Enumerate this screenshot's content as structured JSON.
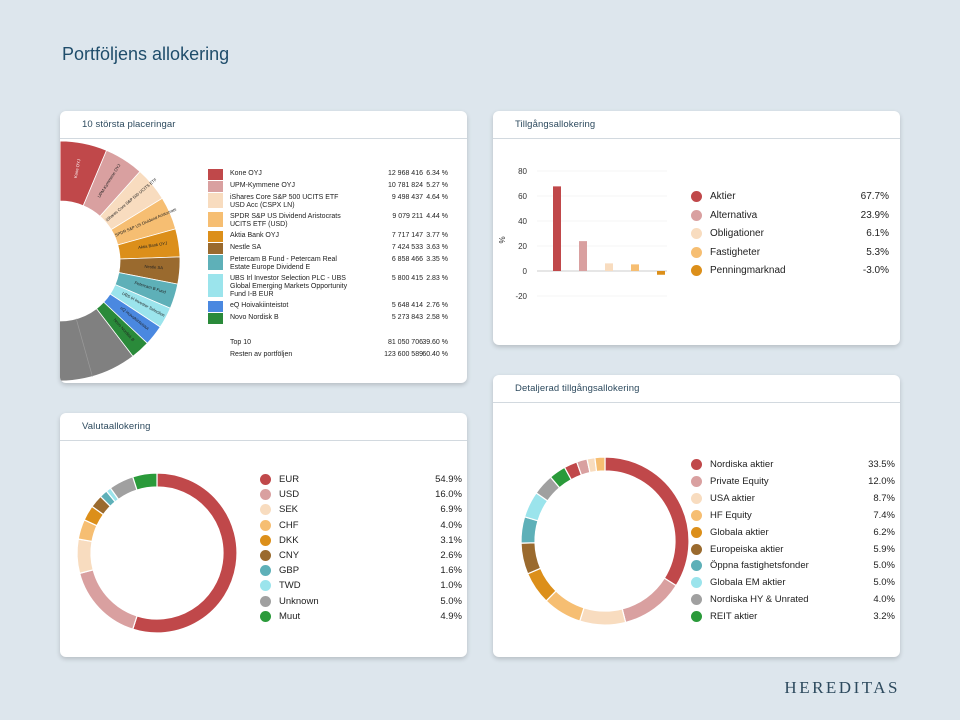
{
  "page": {
    "title": "Portföljens allokering",
    "brand": "HEREDITAS"
  },
  "top10": {
    "title": "10 största placeringar",
    "holdings": [
      {
        "name": "Kone OYJ",
        "lines": [
          "Kone OYJ"
        ],
        "amount": "12 968 416",
        "pct": "6.34 %",
        "value": 6.34,
        "color": "#c0484a",
        "slice_label": "Kone OYJ"
      },
      {
        "name": "UPM-Kymmene OYJ",
        "lines": [
          "UPM-Kymmene OYJ"
        ],
        "amount": "10 781 824",
        "pct": "5.27 %",
        "value": 5.27,
        "color": "#d9a0a0",
        "slice_label": "UPM-Kymmene OYJ"
      },
      {
        "name": "iShares Core S&P 500 UCITS ETF USD Acc (CSPX LN)",
        "lines": [
          "iShares Core S&P 500 UCITS ETF",
          "USD Acc (CSPX LN)"
        ],
        "amount": "9 498 437",
        "pct": "4.64 %",
        "value": 4.64,
        "color": "#f8dcbf",
        "slice_label": "iShares Core S&P 500 UCITS ETF"
      },
      {
        "name": "SPDR S&P US Dividend Aristocrats UCITS ETF (USD)",
        "lines": [
          "SPDR S&P US Dividend Aristocrats",
          "UCITS ETF (USD)"
        ],
        "amount": "9 079 211",
        "pct": "4.44 %",
        "value": 4.44,
        "color": "#f6be72",
        "slice_label": "SPDR S&P US Dividend Aristocrats"
      },
      {
        "name": "Aktia Bank OYJ",
        "lines": [
          "Aktia Bank OYJ"
        ],
        "amount": "7 717 147",
        "pct": "3.77 %",
        "value": 3.77,
        "color": "#dc8f1a",
        "slice_label": "Aktia Bank OYJ"
      },
      {
        "name": "Nestle SA",
        "lines": [
          "Nestle SA"
        ],
        "amount": "7 424 533",
        "pct": "3.63 %",
        "value": 3.63,
        "color": "#9a6a2e",
        "slice_label": "Nestle SA"
      },
      {
        "name": "Petercam B Fund - Petercam Real Estate Europe Dividend E",
        "lines": [
          "Petercam B Fund - Petercam Real",
          "Estate Europe Dividend E"
        ],
        "amount": "6 858 466",
        "pct": "3.35 %",
        "value": 3.35,
        "color": "#5eb0b8",
        "slice_label": "Petercam B Fund"
      },
      {
        "name": "UBS Irl Investor Selection PLC - UBS Global Emerging Markets Opportunity Fund I-B EUR",
        "lines": [
          "UBS Irl Investor Selection PLC - UBS",
          "Global Emerging Markets Opportunity",
          "Fund I-B EUR"
        ],
        "amount": "5 800 415",
        "pct": "2.83 %",
        "value": 2.83,
        "color": "#9be4ec",
        "slice_label": "UBS Irl Investor Selection"
      },
      {
        "name": "eQ Hoivakiinteistot",
        "lines": [
          "eQ Hoivakiinteistot"
        ],
        "amount": "5 648 414",
        "pct": "2.76 %",
        "value": 2.76,
        "color": "#4a88e0",
        "slice_label": "eQ Hoivakiinteistot"
      },
      {
        "name": "Novo Nordisk B",
        "lines": [
          "Novo Nordisk B"
        ],
        "amount": "5 273 843",
        "pct": "2.58 %",
        "value": 2.58,
        "color": "#2a8a3a",
        "slice_label": "Novo Nordisk B"
      }
    ],
    "top10_row": {
      "label": "Top 10",
      "amount": "81 050 706",
      "pct": "39.60 %"
    },
    "rest_row": {
      "label": "Resten av portföljen",
      "amount": "123 600 589",
      "pct": "60.40 %",
      "value": 60.4,
      "color": "#808080"
    }
  },
  "asset": {
    "title": "Tillgångsallokering",
    "chart_data": {
      "type": "bar",
      "categories": [
        "Aktier",
        "Alternativa",
        "Obligationer",
        "Fastigheter",
        "Penningmarknad"
      ],
      "values": [
        67.7,
        23.9,
        6.1,
        5.3,
        -3.0
      ],
      "value_labels": [
        "67.7%",
        "23.9%",
        "6.1%",
        "5.3%",
        "-3.0%"
      ],
      "colors": [
        "#c0484a",
        "#d9a0a0",
        "#f8dcbf",
        "#f6be72",
        "#dc8f1a"
      ],
      "ylabel": "%",
      "ylim": [
        -20,
        80
      ],
      "yticks": [
        "80",
        "60",
        "40",
        "20",
        "0",
        "-20"
      ],
      "title": ""
    }
  },
  "currency": {
    "title": "Valutaallokering",
    "chart_data": {
      "type": "pie",
      "categories": [
        "EUR",
        "USD",
        "SEK",
        "CHF",
        "DKK",
        "CNY",
        "GBP",
        "TWD",
        "Unknown",
        "Muut"
      ],
      "values": [
        54.9,
        16.0,
        6.9,
        4.0,
        3.1,
        2.6,
        1.6,
        1.0,
        5.0,
        4.9
      ],
      "value_labels": [
        "54.9%",
        "16.0%",
        "6.9%",
        "4.0%",
        "3.1%",
        "2.6%",
        "1.6%",
        "1.0%",
        "5.0%",
        "4.9%"
      ],
      "colors": [
        "#c0484a",
        "#d9a0a0",
        "#f8dcbf",
        "#f6be72",
        "#dc8f1a",
        "#9a6a2e",
        "#5eb0b8",
        "#9be4ec",
        "#a0a0a0",
        "#2a9a3a"
      ]
    }
  },
  "detailed": {
    "title": "Detaljerad tillgångsallokering",
    "chart_data": {
      "type": "pie",
      "categories": [
        "Nordiska aktier",
        "Private Equity",
        "USA aktier",
        "HF Equity",
        "Globala aktier",
        "Europeiska aktier",
        "Öppna fastighetsfonder",
        "Globala EM aktier",
        "Nordiska HY & Unrated",
        "REIT aktier"
      ],
      "values": [
        33.5,
        12.0,
        8.7,
        7.4,
        6.2,
        5.9,
        5.0,
        5.0,
        4.0,
        3.2
      ],
      "value_labels": [
        "33.5%",
        "12.0%",
        "8.7%",
        "7.4%",
        "6.2%",
        "5.9%",
        "5.0%",
        "5.0%",
        "4.0%",
        "3.2%"
      ],
      "colors": [
        "#c0484a",
        "#d9a0a0",
        "#f8dcbf",
        "#f6be72",
        "#dc8f1a",
        "#9a6a2e",
        "#5eb0b8",
        "#9be4ec",
        "#a0a0a0",
        "#2a9a3a"
      ],
      "extra_unlabeled": [
        {
          "value": 2.5,
          "color": "#c0484a"
        },
        {
          "value": 2.0,
          "color": "#d9a0a0"
        },
        {
          "value": 1.5,
          "color": "#f8dcbf"
        },
        {
          "value": 1.9,
          "color": "#f6be72"
        }
      ]
    }
  }
}
